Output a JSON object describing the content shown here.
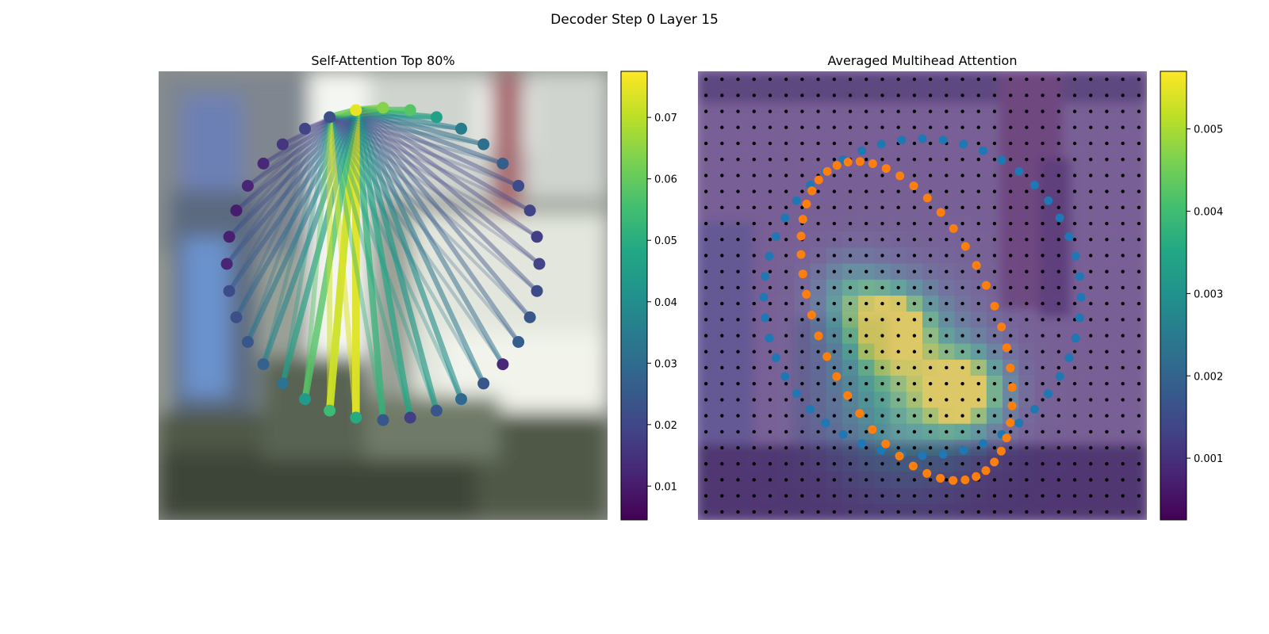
{
  "figure": {
    "title": "Decoder Step 0 Layer 15"
  },
  "chart_data": [
    {
      "type": "scatter",
      "title": "Self-Attention Top 80%",
      "xlabel": "",
      "ylabel": "",
      "colormap": "viridis",
      "colorbar": {
        "range": [
          0.0045,
          0.0775
        ],
        "ticks": [
          0.01,
          0.02,
          0.03,
          0.04,
          0.05,
          0.06,
          0.07
        ]
      },
      "points": {
        "count": 36,
        "source_index": 0,
        "values": [
          0.075,
          0.064,
          0.058,
          0.046,
          0.035,
          0.031,
          0.026,
          0.021,
          0.019,
          0.018,
          0.019,
          0.021,
          0.024,
          0.026,
          0.013,
          0.024,
          0.029,
          0.024,
          0.018,
          0.024,
          0.049,
          0.054,
          0.044,
          0.032,
          0.027,
          0.024,
          0.022,
          0.021,
          0.012,
          0.011,
          0.01,
          0.012,
          0.013,
          0.016,
          0.019,
          0.022
        ]
      },
      "edges": {
        "from_index": [
          0,
          35
        ],
        "weights": [
          0,
          0.064,
          0.058,
          0.046,
          0.035,
          0.031,
          0.026,
          0.021,
          0.019,
          0.018,
          0.019,
          0.021,
          0.024,
          0.026,
          0.03,
          0.034,
          0.04,
          0.044,
          0.048,
          0.052,
          0.074,
          0.072,
          0.058,
          0.045,
          0.038,
          0.033,
          0.029,
          0.026,
          0.024,
          0.022,
          0.02,
          0.019,
          0.018,
          0.017,
          0.016,
          0.06
        ]
      }
    },
    {
      "type": "heatmap",
      "title": "Averaged Multihead Attention",
      "xlabel": "",
      "ylabel": "",
      "colormap": "viridis",
      "grid": {
        "rows": 28,
        "cols": 28
      },
      "colorbar": {
        "range": [
          0.00025,
          0.0057
        ],
        "ticks": [
          0.001,
          0.002,
          0.003,
          0.004,
          0.005
        ]
      },
      "hotspots": [
        {
          "cx": 11.5,
          "cy": 15.5,
          "sx": 1.6,
          "sy": 1.6,
          "amp": 0.0053
        },
        {
          "cx": 16.0,
          "cy": 19.5,
          "sx": 1.7,
          "sy": 1.6,
          "amp": 0.0054
        },
        {
          "cx": 12.5,
          "cy": 19.0,
          "sx": 3.0,
          "sy": 3.6,
          "amp": 0.003
        },
        {
          "cx": 9.0,
          "cy": 13.5,
          "sx": 1.5,
          "sy": 1.6,
          "amp": 0.002
        }
      ],
      "base": 0.0009,
      "series_blue": {
        "color": "#1f77b4",
        "count": 48
      },
      "series_orange": {
        "color": "#ff7f0e",
        "count": 48
      }
    }
  ],
  "colorbar1": {
    "ticks": [
      "0.01",
      "0.02",
      "0.03",
      "0.04",
      "0.05",
      "0.06",
      "0.07"
    ]
  },
  "colorbar2": {
    "ticks": [
      "0.001",
      "0.002",
      "0.003",
      "0.004",
      "0.005"
    ]
  }
}
